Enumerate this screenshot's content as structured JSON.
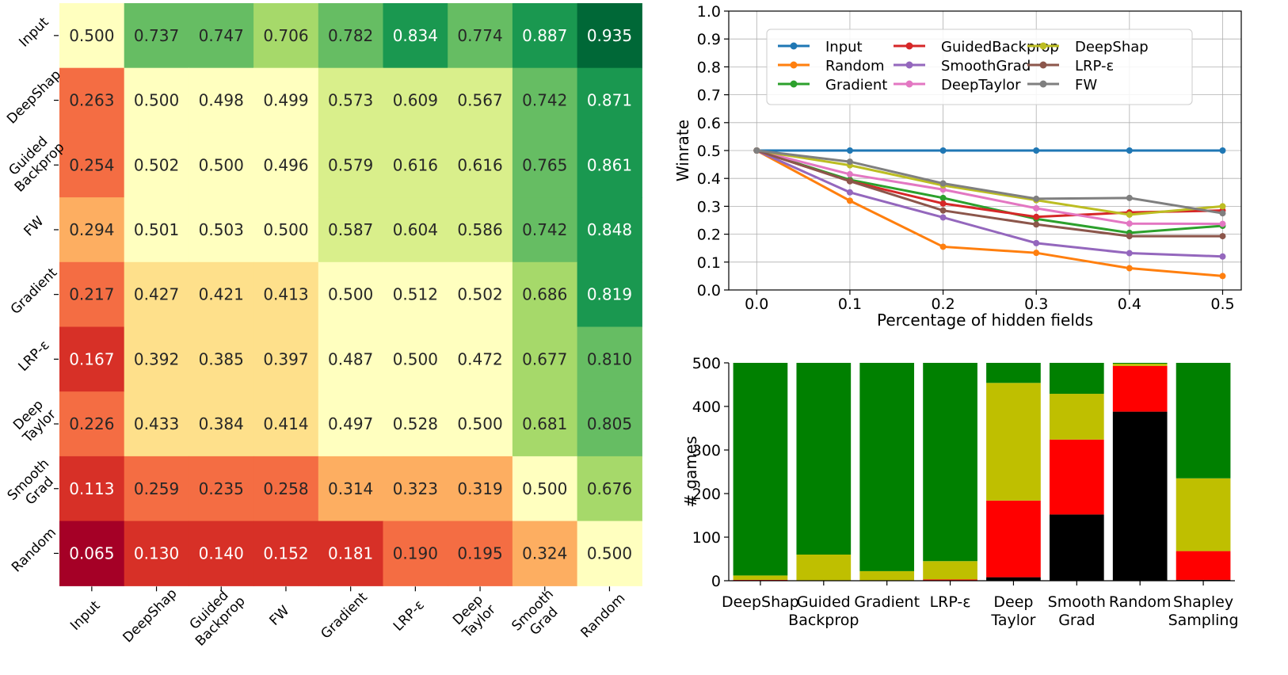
{
  "chart_data": [
    {
      "type": "heatmap",
      "title": "",
      "rows": [
        "Input",
        "DeepShap",
        "Guided\nBackprop",
        "FW",
        "Gradient",
        "LRP-ε",
        "Deep\nTaylor",
        "Smooth\nGrad",
        "Random"
      ],
      "cols": [
        "Input",
        "DeepShap",
        "Guided\nBackprop",
        "FW",
        "Gradient",
        "LRP-ε",
        "Deep\nTaylor",
        "Smooth\nGrad",
        "Random"
      ],
      "values": [
        [
          "0.500",
          "0.737",
          "0.747",
          "0.706",
          "0.782",
          "0.834",
          "0.774",
          "0.887",
          "0.935"
        ],
        [
          "0.263",
          "0.500",
          "0.498",
          "0.499",
          "0.573",
          "0.609",
          "0.567",
          "0.742",
          "0.871"
        ],
        [
          "0.254",
          "0.502",
          "0.500",
          "0.496",
          "0.579",
          "0.616",
          "0.616",
          "0.765",
          "0.861"
        ],
        [
          "0.294",
          "0.501",
          "0.503",
          "0.500",
          "0.587",
          "0.604",
          "0.586",
          "0.742",
          "0.848"
        ],
        [
          "0.217",
          "0.427",
          "0.421",
          "0.413",
          "0.500",
          "0.512",
          "0.502",
          "0.686",
          "0.819"
        ],
        [
          "0.167",
          "0.392",
          "0.385",
          "0.397",
          "0.487",
          "0.500",
          "0.472",
          "0.677",
          "0.810"
        ],
        [
          "0.226",
          "0.433",
          "0.384",
          "0.414",
          "0.497",
          "0.528",
          "0.500",
          "0.681",
          "0.805"
        ],
        [
          "0.113",
          "0.259",
          "0.235",
          "0.258",
          "0.314",
          "0.323",
          "0.319",
          "0.500",
          "0.676"
        ],
        [
          "0.065",
          "0.130",
          "0.140",
          "0.152",
          "0.181",
          "0.190",
          "0.195",
          "0.324",
          "0.500"
        ]
      ],
      "colormap": "RdYlGn"
    },
    {
      "type": "line",
      "title": "",
      "xlabel": "Percentage of hidden fields",
      "ylabel": "Winrate",
      "x": [
        0.0,
        0.1,
        0.2,
        0.3,
        0.4,
        0.5
      ],
      "xticks": [
        "0.0",
        "0.1",
        "0.2",
        "0.3",
        "0.4",
        "0.5"
      ],
      "xlim": [
        -0.03,
        0.52
      ],
      "ylim": [
        0.0,
        1.0
      ],
      "yticks": [
        "0.0",
        "0.1",
        "0.2",
        "0.3",
        "0.4",
        "0.5",
        "0.6",
        "0.7",
        "0.8",
        "0.9",
        "1.0"
      ],
      "grid": true,
      "legend_position": "top",
      "series": [
        {
          "name": "Input",
          "color": "#1f77b4",
          "values": [
            0.5,
            0.5,
            0.5,
            0.5,
            0.5,
            0.5
          ]
        },
        {
          "name": "Random",
          "color": "#ff7f0e",
          "values": [
            0.5,
            0.32,
            0.155,
            0.133,
            0.078,
            0.05
          ]
        },
        {
          "name": "Gradient",
          "color": "#2ca02c",
          "values": [
            0.5,
            0.395,
            0.33,
            0.255,
            0.205,
            0.23
          ]
        },
        {
          "name": "GuidedBackprop",
          "color": "#d62728",
          "values": [
            0.5,
            0.39,
            0.31,
            0.262,
            0.278,
            0.285
          ]
        },
        {
          "name": "SmoothGrad",
          "color": "#9467bd",
          "values": [
            0.5,
            0.35,
            0.26,
            0.168,
            0.132,
            0.12
          ]
        },
        {
          "name": "DeepTaylor",
          "color": "#e377c2",
          "values": [
            0.5,
            0.415,
            0.36,
            0.293,
            0.238,
            0.237
          ]
        },
        {
          "name": "DeepShap",
          "color": "#bcbd22",
          "values": [
            0.5,
            0.447,
            0.375,
            0.322,
            0.27,
            0.3
          ]
        },
        {
          "name": "LRP-ε",
          "color": "#8c564b",
          "values": [
            0.5,
            0.39,
            0.285,
            0.235,
            0.193,
            0.193
          ]
        },
        {
          "name": "FW",
          "color": "#7f7f7f",
          "values": [
            0.5,
            0.46,
            0.382,
            0.327,
            0.33,
            0.275
          ]
        }
      ]
    },
    {
      "type": "bar",
      "stacked": true,
      "title": "",
      "xlabel": "",
      "ylabel": "# games",
      "ylim": [
        0,
        500
      ],
      "yticks": [
        "0",
        "100",
        "200",
        "300",
        "400",
        "500"
      ],
      "categories": [
        "DeepShap",
        "Guided\nBackprop",
        "Gradient",
        "LRP-ε",
        "Deep\nTaylor",
        "Smooth\nGrad",
        "Random",
        "Shapley\nSampling"
      ],
      "series": [
        {
          "name": "black",
          "color": "#000000",
          "values": [
            0,
            0,
            0,
            0,
            8,
            152,
            388,
            2
          ]
        },
        {
          "name": "red",
          "color": "#ff0000",
          "values": [
            2,
            0,
            0,
            3,
            176,
            172,
            105,
            66
          ]
        },
        {
          "name": "olive",
          "color": "#bfbf00",
          "values": [
            10,
            60,
            22,
            42,
            270,
            105,
            5,
            167
          ]
        },
        {
          "name": "green",
          "color": "#008000",
          "values": [
            488,
            440,
            478,
            455,
            46,
            71,
            2,
            265
          ]
        }
      ]
    }
  ]
}
